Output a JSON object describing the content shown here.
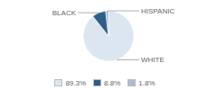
{
  "chart_data": {
    "type": "pie",
    "categories": [
      "WHITE",
      "BLACK",
      "HISPANIC"
    ],
    "values": [
      89.3,
      8.8,
      1.8
    ],
    "value_labels": [
      "89.3%",
      "8.8%",
      "1.8%"
    ],
    "colors": [
      "#dce6f1",
      "#2e5f8a",
      "#a8bfd4"
    ],
    "legend": "bottom"
  }
}
